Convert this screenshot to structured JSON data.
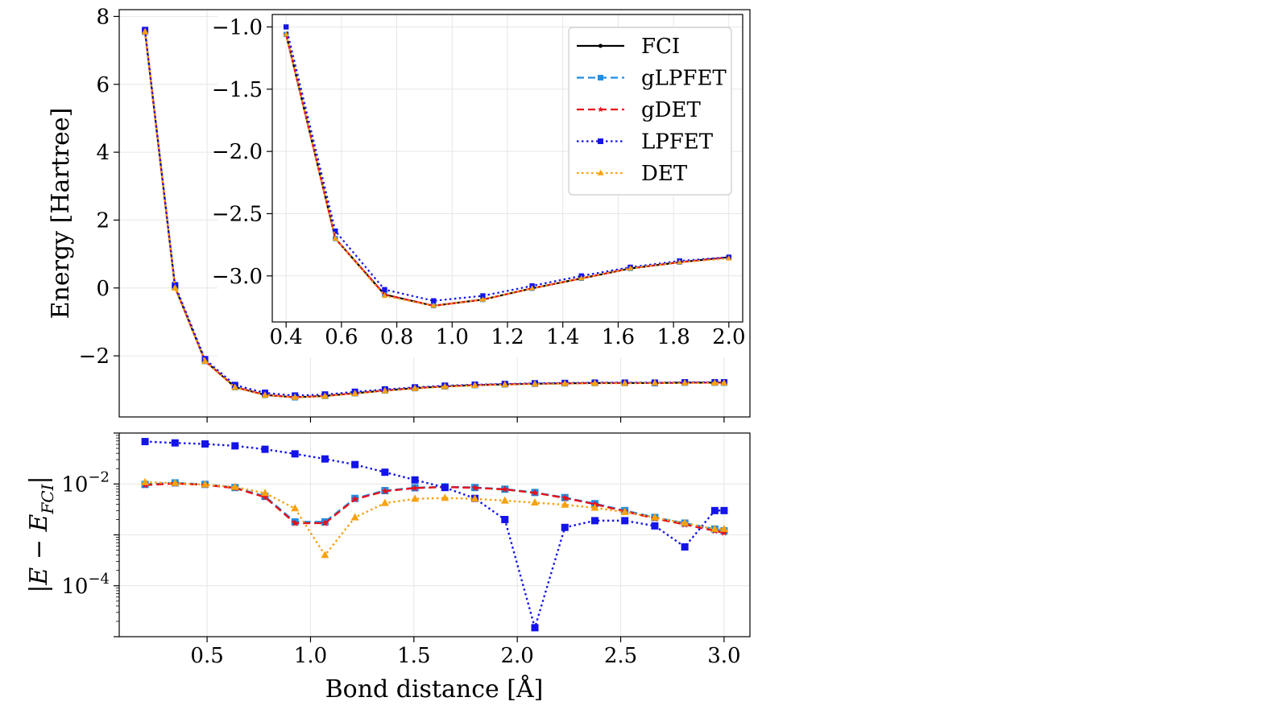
{
  "chart_data": [
    {
      "id": "energy",
      "type": "line",
      "ylabel": "Energy [Hartree]",
      "xlabel": "",
      "xlim": [
        0.075,
        3.125
      ],
      "ylim": [
        -3.8,
        8.2
      ],
      "xticks": [
        0.5,
        1.0,
        1.5,
        2.0,
        2.5,
        3.0
      ],
      "yticks": [
        -2,
        0,
        2,
        4,
        6,
        8
      ],
      "ytick_labels": [
        "−2",
        "0",
        "2",
        "4",
        "6",
        "8"
      ],
      "grid": true,
      "x": [
        0.2,
        0.345,
        0.49,
        0.635,
        0.78,
        0.925,
        1.07,
        1.215,
        1.36,
        1.505,
        1.65,
        1.795,
        1.94,
        2.085,
        2.23,
        2.375,
        2.52,
        2.665,
        2.81,
        2.955,
        3.0
      ],
      "series": [
        {
          "name": "FCI",
          "color": "#000000",
          "style": "solid",
          "marker": "circle",
          "values": [
            7.55,
            0.02,
            -2.15,
            -2.92,
            -3.15,
            -3.22,
            -3.18,
            -3.1,
            -3.02,
            -2.95,
            -2.9,
            -2.86,
            -2.84,
            -2.82,
            -2.81,
            -2.8,
            -2.8,
            -2.8,
            -2.79,
            -2.79,
            -2.79
          ]
        },
        {
          "name": "gLPFET",
          "color": "#1f8fe8",
          "style": "dashed",
          "marker": "square",
          "values": [
            7.55,
            0.02,
            -2.15,
            -2.92,
            -3.15,
            -3.22,
            -3.18,
            -3.1,
            -3.02,
            -2.95,
            -2.9,
            -2.86,
            -2.84,
            -2.82,
            -2.81,
            -2.8,
            -2.8,
            -2.8,
            -2.79,
            -2.79,
            -2.79
          ]
        },
        {
          "name": "gDET",
          "color": "#e8101a",
          "style": "dashed",
          "marker": "star",
          "values": [
            7.55,
            0.02,
            -2.15,
            -2.92,
            -3.15,
            -3.22,
            -3.18,
            -3.1,
            -3.02,
            -2.95,
            -2.9,
            -2.86,
            -2.84,
            -2.82,
            -2.81,
            -2.8,
            -2.8,
            -2.8,
            -2.79,
            -2.79,
            -2.79
          ]
        },
        {
          "name": "LPFET",
          "color": "#1414e8",
          "style": "dotted",
          "marker": "square",
          "values": [
            7.6,
            0.08,
            -2.1,
            -2.86,
            -3.09,
            -3.17,
            -3.14,
            -3.06,
            -2.99,
            -2.93,
            -2.88,
            -2.85,
            -2.83,
            -2.81,
            -2.8,
            -2.79,
            -2.79,
            -2.79,
            -2.78,
            -2.78,
            -2.78
          ]
        },
        {
          "name": "DET",
          "color": "#f7a10f",
          "style": "dotted",
          "marker": "triangle",
          "values": [
            7.55,
            0.0,
            -2.16,
            -2.93,
            -3.16,
            -3.22,
            -3.19,
            -3.11,
            -3.03,
            -2.96,
            -2.91,
            -2.87,
            -2.85,
            -2.83,
            -2.82,
            -2.81,
            -2.81,
            -2.8,
            -2.8,
            -2.8,
            -2.8
          ]
        }
      ]
    },
    {
      "id": "inset",
      "type": "line",
      "xlim": [
        0.35,
        2.05
      ],
      "ylim": [
        -3.37,
        -0.9
      ],
      "xticks": [
        0.4,
        0.6,
        0.8,
        1.0,
        1.2,
        1.4,
        1.6,
        1.8,
        2.0
      ],
      "xtick_labels": [
        "0.4",
        "0.6",
        "0.8",
        "1.0",
        "1.2",
        "1.4",
        "1.6",
        "1.8",
        "2.0"
      ],
      "yticks": [
        -3.0,
        -2.5,
        -2.0,
        -1.5,
        -1.0
      ],
      "ytick_labels": [
        "−3.0",
        "−2.5",
        "−2.0",
        "−1.5",
        "−1.0"
      ],
      "grid": true,
      "x": [
        0.4,
        0.578,
        0.756,
        0.933,
        1.111,
        1.289,
        1.467,
        1.644,
        1.822,
        2.0
      ],
      "series": [
        {
          "name": "FCI",
          "values": [
            -1.06,
            -2.7,
            -3.15,
            -3.24,
            -3.19,
            -3.1,
            -3.02,
            -2.94,
            -2.89,
            -2.85
          ]
        },
        {
          "name": "gLPFET",
          "values": [
            -1.06,
            -2.7,
            -3.15,
            -3.24,
            -3.19,
            -3.1,
            -3.02,
            -2.94,
            -2.89,
            -2.85
          ]
        },
        {
          "name": "gDET",
          "values": [
            -1.06,
            -2.7,
            -3.15,
            -3.24,
            -3.19,
            -3.1,
            -3.02,
            -2.94,
            -2.89,
            -2.85
          ]
        },
        {
          "name": "LPFET",
          "values": [
            -1.0,
            -2.64,
            -3.11,
            -3.2,
            -3.16,
            -3.08,
            -3.0,
            -2.93,
            -2.88,
            -2.85
          ]
        },
        {
          "name": "DET",
          "values": [
            -1.06,
            -2.7,
            -3.16,
            -3.24,
            -3.19,
            -3.1,
            -3.02,
            -2.94,
            -2.89,
            -2.86
          ]
        }
      ]
    },
    {
      "id": "error",
      "type": "line",
      "yscale": "log",
      "xlabel": "Bond distance [Å]",
      "ylabel": "|E − E_FCI|",
      "xlim": [
        0.075,
        3.125
      ],
      "ylog_lim": [
        -5.0,
        -1.0
      ],
      "xticks": [
        0.5,
        1.0,
        1.5,
        2.0,
        2.5,
        3.0
      ],
      "xtick_labels": [
        "0.5",
        "1.0",
        "1.5",
        "2.0",
        "2.5",
        "3.0"
      ],
      "ytick_exponents": [
        -2,
        -4
      ],
      "grid": true,
      "x": [
        0.2,
        0.345,
        0.49,
        0.635,
        0.78,
        0.925,
        1.07,
        1.215,
        1.36,
        1.505,
        1.65,
        1.795,
        1.94,
        2.085,
        2.23,
        2.375,
        2.52,
        2.665,
        2.81,
        2.955,
        3.0
      ],
      "series": [
        {
          "name": "gLPFET",
          "values": [
            0.0098,
            0.0105,
            0.0098,
            0.0085,
            0.0057,
            0.0018,
            0.0018,
            0.0052,
            0.0074,
            0.0084,
            0.0088,
            0.0085,
            0.0079,
            0.0068,
            0.0054,
            0.0041,
            0.003,
            0.0022,
            0.0017,
            0.0013,
            0.0012
          ]
        },
        {
          "name": "gDET",
          "values": [
            0.0095,
            0.0102,
            0.0096,
            0.0083,
            0.0055,
            0.0017,
            0.0017,
            0.005,
            0.0072,
            0.0083,
            0.0087,
            0.0084,
            0.0078,
            0.0067,
            0.0053,
            0.004,
            0.0029,
            0.0021,
            0.0016,
            0.0012,
            0.0011
          ]
        },
        {
          "name": "LPFET",
          "values": [
            0.068,
            0.064,
            0.061,
            0.056,
            0.048,
            0.039,
            0.031,
            0.024,
            0.017,
            0.012,
            0.0085,
            0.0052,
            0.002,
            1.5e-05,
            0.0014,
            0.0019,
            0.0019,
            0.0015,
            0.00058,
            0.003,
            0.003
          ]
        },
        {
          "name": "DET",
          "values": [
            0.0108,
            0.0104,
            0.0097,
            0.0087,
            0.0066,
            0.0033,
            0.0004,
            0.0022,
            0.0042,
            0.0051,
            0.0053,
            0.0051,
            0.0047,
            0.0043,
            0.0039,
            0.0034,
            0.0028,
            0.0022,
            0.0017,
            0.0013,
            0.0013
          ]
        }
      ]
    }
  ],
  "legend": [
    {
      "label": "FCI",
      "color": "#000000",
      "style": "solid",
      "marker": "circle"
    },
    {
      "label": "gLPFET",
      "color": "#1f8fe8",
      "style": "dashed",
      "marker": "square"
    },
    {
      "label": "gDET",
      "color": "#e8101a",
      "style": "dashed",
      "marker": "star"
    },
    {
      "label": "LPFET",
      "color": "#1414e8",
      "style": "dotted",
      "marker": "square"
    },
    {
      "label": "DET",
      "color": "#f7a10f",
      "style": "dotted",
      "marker": "triangle"
    }
  ]
}
